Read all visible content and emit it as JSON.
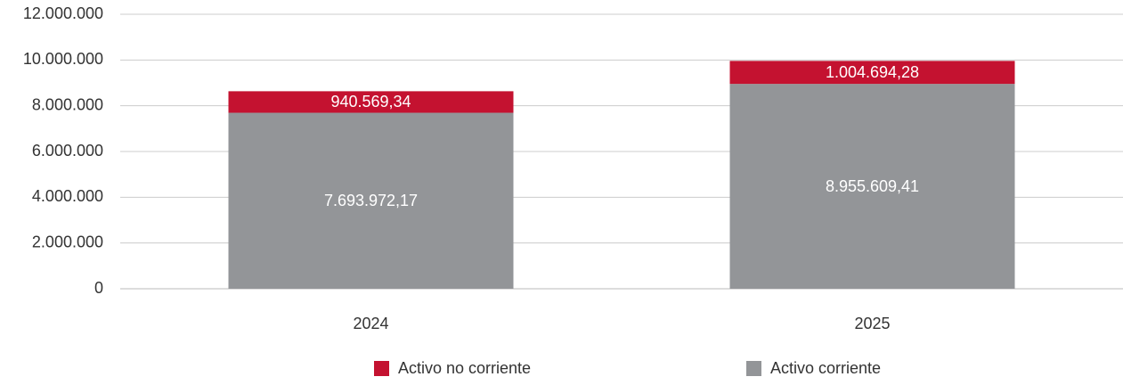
{
  "chart_data": {
    "type": "stacked_bar",
    "categories": [
      "2024",
      "2025"
    ],
    "series": [
      {
        "name": "Activo no corriente",
        "color": "#c41230",
        "values": [
          940569.34,
          1004694.28
        ],
        "value_labels": [
          "940.569,34",
          "1.004.694,28"
        ]
      },
      {
        "name": "Activo corriente",
        "color": "#939598",
        "values": [
          7693972.17,
          8955609.41
        ],
        "value_labels": [
          "7.693.972,17",
          "8.955.609,41"
        ]
      }
    ],
    "ylim": [
      0,
      12000000
    ],
    "yticks": [
      0,
      {
        "value": 2000000,
        "label": "2.000.000"
      },
      {
        "value": 4000000,
        "label": "4.000.000"
      },
      {
        "value": 6000000,
        "label": "6.000.000"
      },
      {
        "value": 8000000,
        "label": "8.000.000"
      },
      {
        "value": 10000000,
        "label": "10.000.000"
      },
      {
        "value": 12000000,
        "label": "12.000.000"
      }
    ],
    "grid": true
  }
}
